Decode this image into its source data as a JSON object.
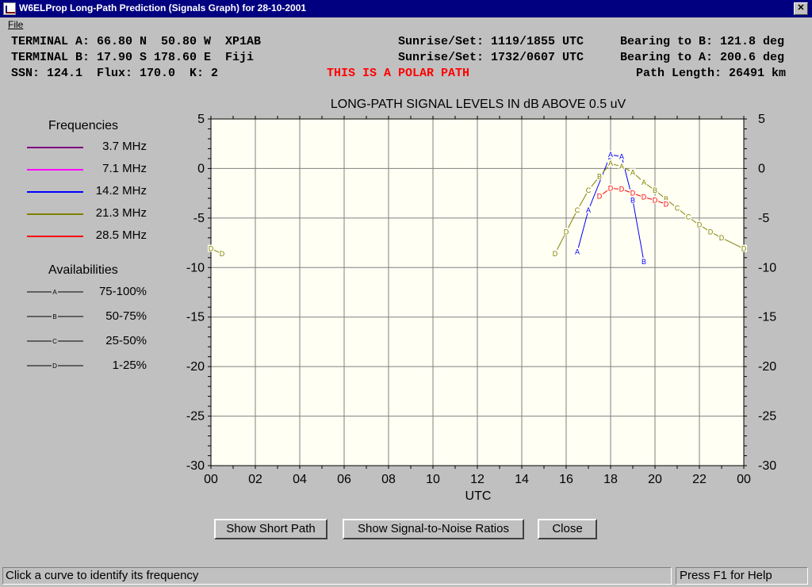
{
  "window": {
    "title": "W6ELProp Long-Path Prediction (Signals Graph) for 28-10-2001",
    "close_glyph": "✕"
  },
  "menu": {
    "file": "File"
  },
  "info": {
    "line1_left": "TERMINAL A: 66.80 N  50.80 W  XP1AB",
    "line1_mid": "Sunrise/Set: 1119/1855 UTC",
    "line1_right": "Bearing to B: 121.8 deg",
    "line2_left": "TERMINAL B: 17.90 S 178.60 E  Fiji",
    "line2_mid": "Sunrise/Set: 1732/0607 UTC",
    "line2_right": "Bearing to A: 200.6 deg",
    "line3_left": "SSN: 124.1  Flux: 170.0  K: 2",
    "line3_mid": "THIS IS A POLAR PATH",
    "line3_right": "Path Length: 26491 km"
  },
  "legend": {
    "freq_title": "Frequencies",
    "avail_title": "Availabilities",
    "availabilities": [
      {
        "code": "A",
        "label": "75-100%"
      },
      {
        "code": "B",
        "label": "50-75%"
      },
      {
        "code": "C",
        "label": "25-50%"
      },
      {
        "code": "D",
        "label": "1-25%"
      }
    ]
  },
  "buttons": {
    "short_path": "Show Short Path",
    "snr": "Show Signal-to-Noise Ratios",
    "close": "Close"
  },
  "status": {
    "left": "Click a curve to identify its frequency",
    "right": "Press F1 for Help"
  },
  "chart_data": {
    "type": "line",
    "title": "LONG-PATH SIGNAL LEVELS IN dB ABOVE 0.5 uV",
    "xlabel": "UTC",
    "ylabel": "",
    "xlim": [
      0,
      24
    ],
    "ylim": [
      -30,
      5
    ],
    "x_ticks": [
      "00",
      "02",
      "04",
      "06",
      "08",
      "10",
      "12",
      "14",
      "16",
      "18",
      "20",
      "22",
      "00"
    ],
    "y_ticks": [
      "5",
      "0",
      "-5",
      "-10",
      "-15",
      "-20",
      "-25",
      "-30"
    ],
    "grid": true,
    "legend_position": "left",
    "series": [
      {
        "name": "3.7 MHz",
        "color": "#800080",
        "points": []
      },
      {
        "name": "7.1 MHz",
        "color": "#ff00ff",
        "points": []
      },
      {
        "name": "14.2 MHz",
        "color": "#0000ff",
        "points": [
          {
            "x": 16.5,
            "y": -8.4,
            "a": "A"
          },
          {
            "x": 17.0,
            "y": -4.2,
            "a": "A"
          },
          {
            "x": 18.0,
            "y": 1.4,
            "a": "A"
          },
          {
            "x": 18.5,
            "y": 1.2,
            "a": "A"
          },
          {
            "x": 19.0,
            "y": -3.2,
            "a": "B"
          },
          {
            "x": 19.5,
            "y": -9.4,
            "a": "B"
          }
        ]
      },
      {
        "name": "21.3 MHz",
        "color": "#808000",
        "points": [
          {
            "x": 0.0,
            "y": -8.1,
            "a": "D"
          },
          {
            "x": 0.5,
            "y": -8.6,
            "a": "D"
          },
          {
            "x": 15.5,
            "y": -8.6,
            "a": "D"
          },
          {
            "x": 16.0,
            "y": -6.4,
            "a": "D"
          },
          {
            "x": 16.5,
            "y": -4.2,
            "a": "C"
          },
          {
            "x": 17.0,
            "y": -2.2,
            "a": "C"
          },
          {
            "x": 17.5,
            "y": -0.8,
            "a": "B"
          },
          {
            "x": 18.0,
            "y": 0.5,
            "a": "A"
          },
          {
            "x": 18.5,
            "y": 0.2,
            "a": "A"
          },
          {
            "x": 19.0,
            "y": -0.4,
            "a": "A"
          },
          {
            "x": 19.5,
            "y": -1.4,
            "a": "A"
          },
          {
            "x": 20.0,
            "y": -2.2,
            "a": "B"
          },
          {
            "x": 20.5,
            "y": -3.1,
            "a": "B"
          },
          {
            "x": 21.0,
            "y": -4.0,
            "a": "C"
          },
          {
            "x": 21.5,
            "y": -4.9,
            "a": "C"
          },
          {
            "x": 22.0,
            "y": -5.7,
            "a": "D"
          },
          {
            "x": 22.5,
            "y": -6.4,
            "a": "D"
          },
          {
            "x": 23.0,
            "y": -7.0,
            "a": "D"
          },
          {
            "x": 24.0,
            "y": -8.1,
            "a": "D"
          }
        ]
      },
      {
        "name": "28.5 MHz",
        "color": "#ff0000",
        "points": [
          {
            "x": 17.5,
            "y": -2.8,
            "a": "D"
          },
          {
            "x": 18.0,
            "y": -2.0,
            "a": "D"
          },
          {
            "x": 18.5,
            "y": -2.1,
            "a": "D"
          },
          {
            "x": 19.0,
            "y": -2.5,
            "a": "D"
          },
          {
            "x": 19.5,
            "y": -2.9,
            "a": "D"
          },
          {
            "x": 20.0,
            "y": -3.2,
            "a": "D"
          },
          {
            "x": 20.5,
            "y": -3.6,
            "a": "D"
          }
        ]
      }
    ]
  }
}
